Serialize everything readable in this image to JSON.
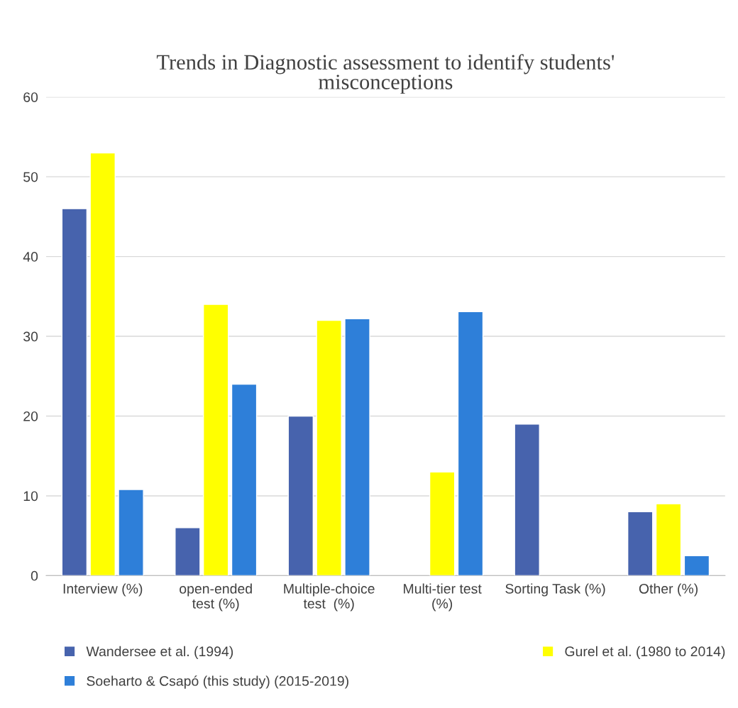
{
  "chart_data": {
    "type": "bar",
    "title": "Trends in Diagnostic assessment to identify students'\nmisconceptions",
    "categories": [
      "Interview (%)",
      "open-ended\ntest (%)",
      "Multiple-choice\ntest  (%)",
      "Multi-tier test\n(%)",
      "Sorting Task (%)",
      "Other (%)"
    ],
    "series": [
      {
        "name": "Wandersee et al. (1994)",
        "color": "#4763ad",
        "values": [
          46,
          6,
          20,
          null,
          19,
          8
        ]
      },
      {
        "name": "Gurel et al. (1980 to 2014)",
        "color": "#ffff00",
        "values": [
          53,
          34,
          32,
          13,
          null,
          9
        ]
      },
      {
        "name": "Soeharto & Csapó (this study) (2015-2019)",
        "color": "#2e7fd9",
        "values": [
          10.8,
          24,
          32.2,
          33.1,
          null,
          2.5
        ]
      }
    ],
    "ylim": [
      0,
      60
    ],
    "yticks": [
      0,
      10,
      20,
      30,
      40,
      50,
      60
    ],
    "grid": "y",
    "legend": "bottom"
  }
}
